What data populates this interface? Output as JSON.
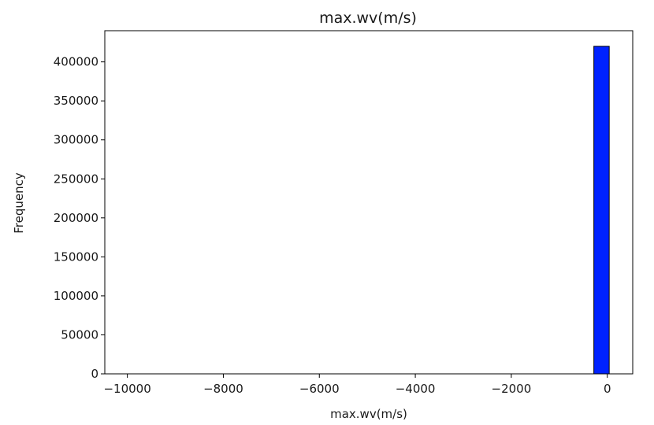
{
  "chart_data": {
    "type": "bar",
    "title": "max.wv(m/s)",
    "xlabel": "max.wv(m/s)",
    "ylabel": "Frequency",
    "xlim": [
      -10470,
      530
    ],
    "ylim": [
      0,
      440000
    ],
    "x_ticks": [
      {
        "value": -10000,
        "label": "−10000"
      },
      {
        "value": -8000,
        "label": "−8000"
      },
      {
        "value": -6000,
        "label": "−6000"
      },
      {
        "value": -4000,
        "label": "−4000"
      },
      {
        "value": -2000,
        "label": "−2000"
      },
      {
        "value": 0,
        "label": "0"
      }
    ],
    "y_ticks": [
      {
        "value": 0,
        "label": "0"
      },
      {
        "value": 50000,
        "label": "50000"
      },
      {
        "value": 100000,
        "label": "100000"
      },
      {
        "value": 150000,
        "label": "150000"
      },
      {
        "value": 200000,
        "label": "200000"
      },
      {
        "value": 250000,
        "label": "250000"
      },
      {
        "value": 300000,
        "label": "300000"
      },
      {
        "value": 350000,
        "label": "350000"
      },
      {
        "value": 400000,
        "label": "400000"
      }
    ],
    "bins": [
      {
        "x0": -280,
        "x1": 40,
        "value": 420000
      }
    ],
    "grid": false,
    "bar_color": "#0022ff",
    "edge_color": "#000000"
  }
}
